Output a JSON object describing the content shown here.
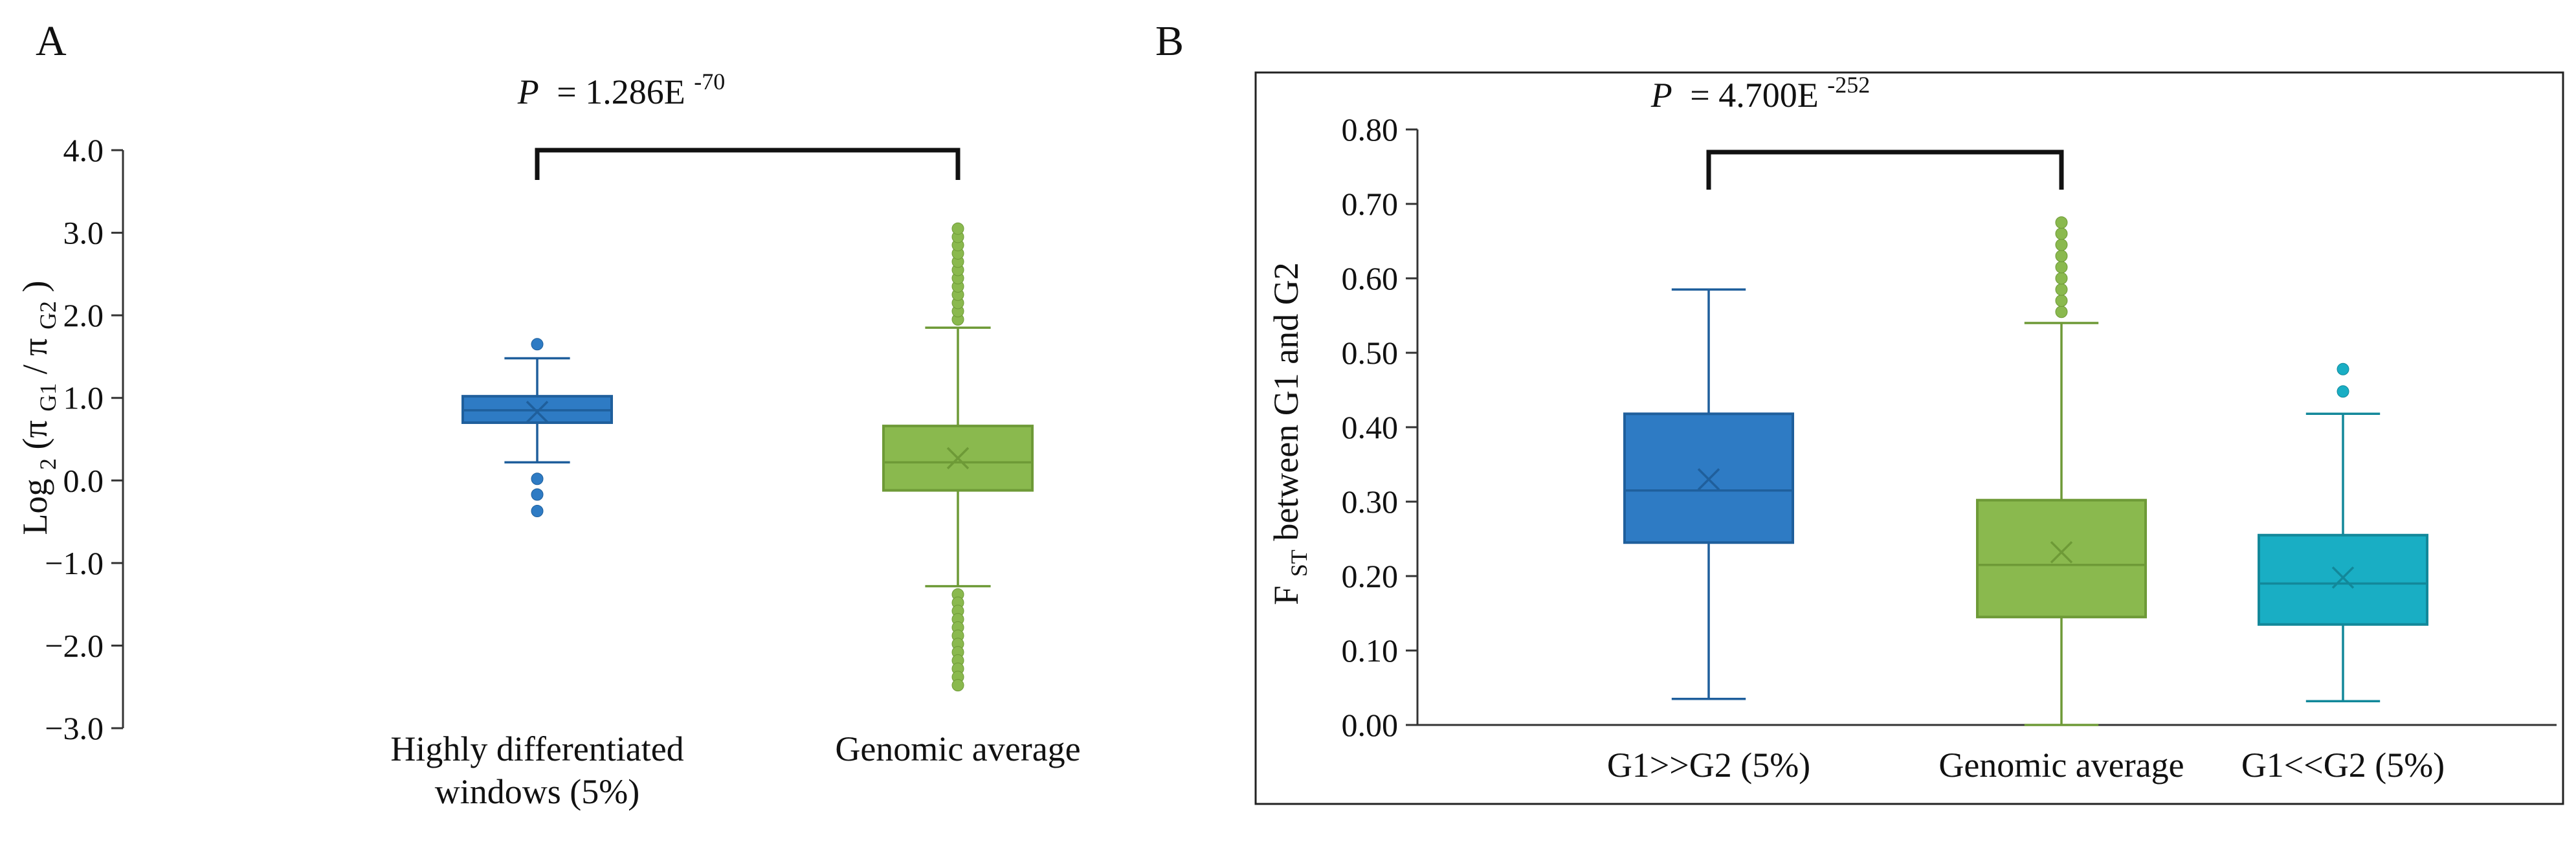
{
  "chart_data": [
    {
      "type": "box",
      "panel_label": "A",
      "title": "",
      "ylabel": {
        "base": "Log",
        "sub1": "2",
        "open": "(π",
        "sub2": "G1",
        "mid": "/ π",
        "sub3": "G2",
        "close": ")"
      },
      "ylim": [
        -3.0,
        4.0
      ],
      "yticks": [
        4.0,
        3.0,
        2.0,
        1.0,
        0.0,
        -1.0,
        -2.0,
        -3.0
      ],
      "ytick_labels": [
        "4.0",
        "3.0",
        "2.0",
        "1.0",
        "0.0",
        "−1.0",
        "−2.0",
        "−3.0"
      ],
      "pvalue": {
        "label": "P",
        "equals": "= 1.286E",
        "exponent": "-70",
        "between": [
          0,
          1
        ]
      },
      "groups": [
        {
          "label_lines": [
            "Highly differentiated",
            "windows (5%)"
          ],
          "whisker_low": 0.22,
          "q1": 0.7,
          "median": 0.85,
          "q3": 1.02,
          "whisker_high": 1.48,
          "mean": 0.83,
          "outliers": [
            1.65,
            0.02,
            -0.17,
            -0.37
          ],
          "fill": "#2e7bc4",
          "stroke": "#1f5f9c"
        },
        {
          "label_lines": [
            "Genomic average"
          ],
          "whisker_low": -1.28,
          "q1": -0.12,
          "median": 0.22,
          "q3": 0.66,
          "whisker_high": 1.85,
          "mean": 0.27,
          "outliers": [
            1.95,
            2.05,
            2.15,
            2.25,
            2.35,
            2.45,
            2.55,
            2.65,
            2.75,
            2.85,
            2.95,
            3.05,
            -1.38,
            -1.48,
            -1.58,
            -1.68,
            -1.78,
            -1.88,
            -1.98,
            -2.08,
            -2.18,
            -2.28,
            -2.38,
            -2.48
          ],
          "fill": "#8ab94e",
          "stroke": "#6e9a37"
        }
      ]
    },
    {
      "type": "box",
      "panel_label": "B",
      "title": "",
      "ylabel": {
        "base": "F",
        "sub1": "ST",
        "rest": " between G1 and G2"
      },
      "ylim": [
        0.0,
        0.8
      ],
      "yticks": [
        0.8,
        0.7,
        0.6,
        0.5,
        0.4,
        0.3,
        0.2,
        0.1,
        0.0
      ],
      "ytick_labels": [
        "0.80",
        "0.70",
        "0.60",
        "0.50",
        "0.40",
        "0.30",
        "0.20",
        "0.10",
        "0.00"
      ],
      "pvalue": {
        "label": "P",
        "equals": "= 4.700E",
        "exponent": "-252",
        "between": [
          0,
          1
        ]
      },
      "groups": [
        {
          "label_lines": [
            "G1>>G2 (5%)"
          ],
          "whisker_low": 0.035,
          "q1": 0.245,
          "median": 0.315,
          "q3": 0.418,
          "whisker_high": 0.585,
          "mean": 0.33,
          "outliers": [],
          "fill": "#2e7bc4",
          "stroke": "#1f5f9c"
        },
        {
          "label_lines": [
            "Genomic average"
          ],
          "whisker_low": 0.0,
          "q1": 0.145,
          "median": 0.215,
          "q3": 0.302,
          "whisker_high": 0.54,
          "mean": 0.232,
          "outliers": [
            0.555,
            0.57,
            0.585,
            0.6,
            0.615,
            0.63,
            0.645,
            0.66,
            0.675
          ],
          "fill": "#8ab94e",
          "stroke": "#6e9a37"
        },
        {
          "label_lines": [
            "G1<<G2 (5%)"
          ],
          "whisker_low": 0.032,
          "q1": 0.135,
          "median": 0.19,
          "q3": 0.255,
          "whisker_high": 0.418,
          "mean": 0.198,
          "outliers": [
            0.448,
            0.478
          ],
          "fill": "#19aec4",
          "stroke": "#12889a"
        }
      ]
    }
  ]
}
